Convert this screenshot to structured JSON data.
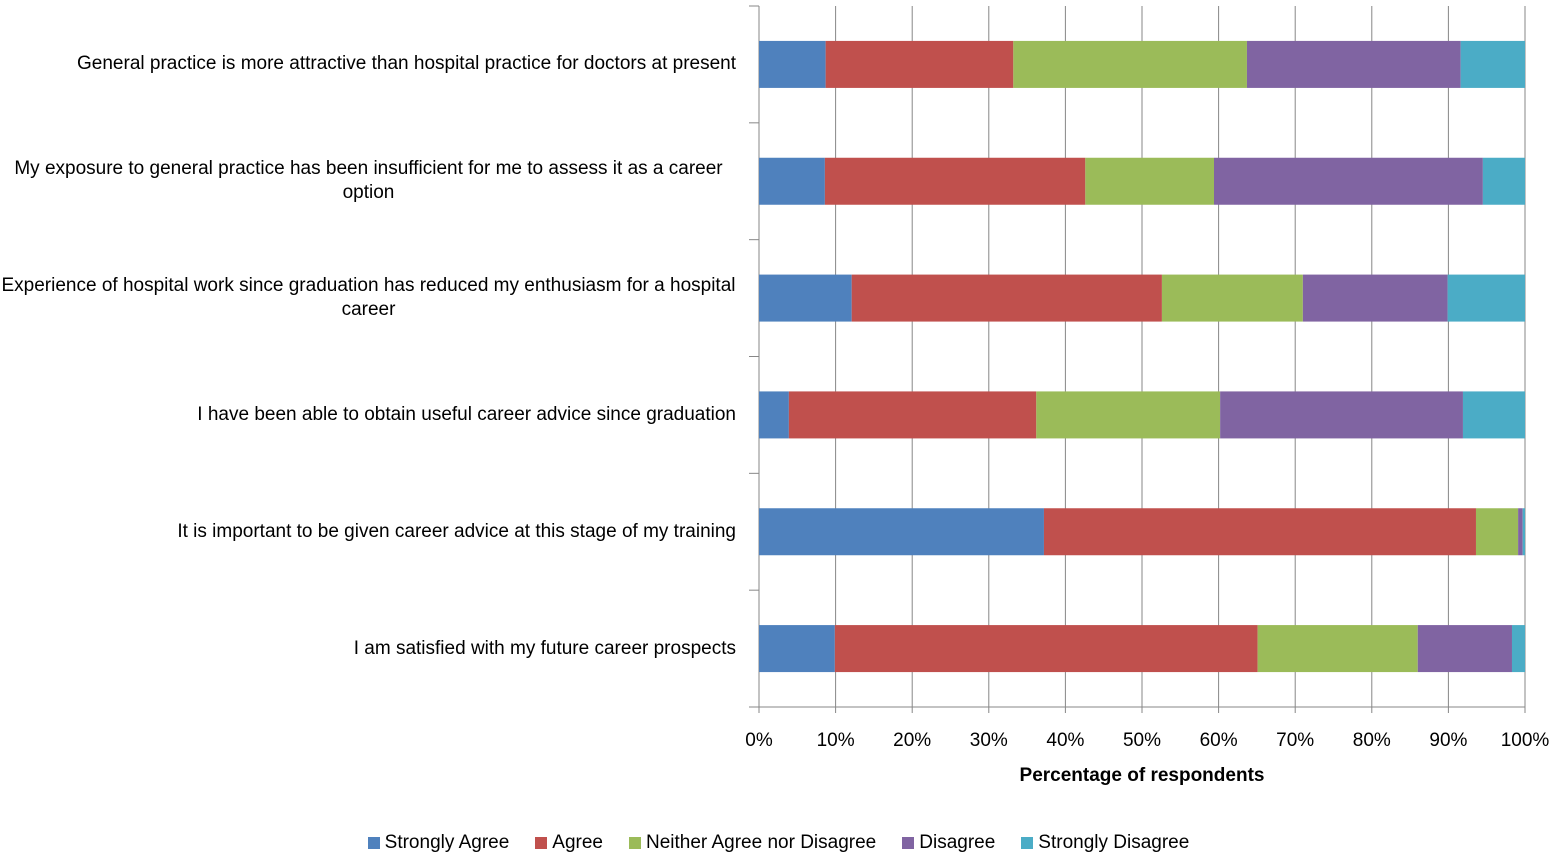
{
  "chart_data": {
    "type": "stacked_barh",
    "x_label": "Percentage of respondents",
    "categories": [
      "General practice is more attractive than hospital practice for doctors at present",
      "My exposure to general practice has been insufficient for me to assess it as a career option",
      "Experience of hospital work since graduation has reduced my enthusiasm for a hospital career",
      "I have been able to obtain useful career advice since graduation",
      "It is important to be given career advice at this stage of my training",
      "I am satisfied with my future career prospects"
    ],
    "series": [
      {
        "name": "Strongly Agree",
        "color": "#4f81bd",
        "values": [
          8.7,
          8.6,
          12.1,
          3.9,
          37.2,
          9.9
        ]
      },
      {
        "name": "Agree",
        "color": "#c0504d",
        "values": [
          24.5,
          34.0,
          40.5,
          32.3,
          56.4,
          55.2
        ]
      },
      {
        "name": "Neither Agree nor Disagree",
        "color": "#9bbb59",
        "values": [
          30.5,
          16.8,
          18.4,
          24.0,
          5.5,
          20.9
        ]
      },
      {
        "name": "Disagree",
        "color": "#8064a2",
        "values": [
          27.9,
          35.1,
          18.9,
          31.7,
          0.6,
          12.3
        ]
      },
      {
        "name": "Strongly Disagree",
        "color": "#4bacc6",
        "values": [
          8.4,
          5.5,
          10.1,
          8.1,
          0.3,
          1.7
        ]
      }
    ],
    "xlim": [
      0,
      100
    ],
    "xticks": [
      {
        "value": 0,
        "label": "0%"
      },
      {
        "value": 10,
        "label": "10%"
      },
      {
        "value": 20,
        "label": "20%"
      },
      {
        "value": 30,
        "label": "30%"
      },
      {
        "value": 40,
        "label": "40%"
      },
      {
        "value": 50,
        "label": "50%"
      },
      {
        "value": 60,
        "label": "60%"
      },
      {
        "value": 70,
        "label": "70%"
      },
      {
        "value": 80,
        "label": "80%"
      },
      {
        "value": 90,
        "label": "90%"
      },
      {
        "value": 100,
        "label": "100%"
      }
    ],
    "grid": true,
    "legend": "bottom"
  }
}
